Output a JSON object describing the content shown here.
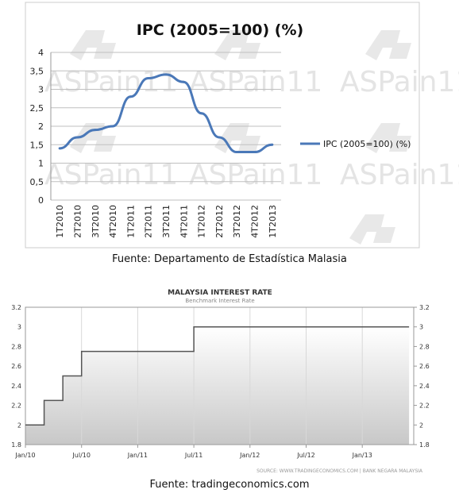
{
  "chart_data": [
    {
      "type": "line",
      "title": "IPC (2005=100) (%)",
      "categories": [
        "1T2010",
        "2T2010",
        "3T2010",
        "4T2010",
        "1T2011",
        "2T2011",
        "3T2011",
        "4T2011",
        "1T2012",
        "2T2012",
        "3T2012",
        "4T2012",
        "1T2013"
      ],
      "series": [
        {
          "name": "IPC (2005=100) (%)",
          "values": [
            1.4,
            1.7,
            1.9,
            2.0,
            2.8,
            3.3,
            3.4,
            3.2,
            2.35,
            1.7,
            1.3,
            1.3,
            1.5
          ]
        }
      ],
      "ylim": [
        0,
        4
      ],
      "yticks": [
        "0",
        "0,5",
        "1",
        "1,5",
        "2",
        "2,5",
        "3",
        "3,5",
        "4"
      ],
      "grid": "horizontal",
      "legend": "right",
      "watermark": "ASPain11",
      "colors": {
        "line": "#4a78b8",
        "grid": "#bfbfbf"
      },
      "caption": "Fuente: Departamento de Estadística Malasia"
    },
    {
      "type": "line",
      "title": "MALAYSIA INTEREST RATE",
      "subtitle": "Benchmark Interest Rate",
      "x_ticks": [
        "Jan/10",
        "Jul/10",
        "Jan/11",
        "Jul/11",
        "Jan/12",
        "Jul/12",
        "Jan/13"
      ],
      "series": [
        {
          "x": [
            "Jan/10",
            "Mar/10",
            "May/10",
            "Jul/10",
            "Jul/11",
            "Jun/13"
          ],
          "values": [
            2.0,
            2.25,
            2.5,
            2.75,
            3.0,
            3.0
          ],
          "step": true
        }
      ],
      "ylim": [
        1.8,
        3.2
      ],
      "yticks": [
        "1.8",
        "2",
        "2.2",
        "2.4",
        "2.6",
        "2.8",
        "3",
        "3.2"
      ],
      "grid": "vertical",
      "source": "SOURCE: WWW.TRADINGECONOMICS.COM  |  BANK NEGARA MALAYSIA",
      "caption": "Fuente: tradingeconomics.com"
    }
  ]
}
